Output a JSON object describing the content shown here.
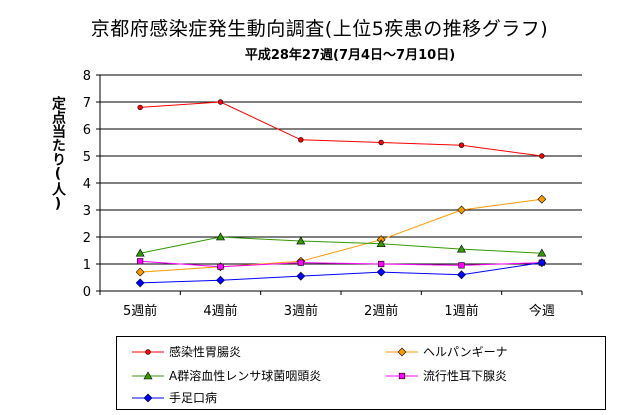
{
  "chart_data": {
    "type": "line",
    "title": "京都府感染症発生動向調査(上位5疾患の推移グラフ)",
    "subtitle": "平成28年27週(7月4日〜7月10日)",
    "ylabel": "定点当たり(人)",
    "xlabel": "",
    "ylim": [
      0,
      8
    ],
    "yticks": [
      "0",
      "1",
      "2",
      "3",
      "4",
      "5",
      "6",
      "7",
      "8"
    ],
    "categories": [
      "5週前",
      "4週前",
      "3週前",
      "2週前",
      "1週前",
      "今週"
    ],
    "grid": true,
    "legend_position": "bottom",
    "series": [
      {
        "name": "感染性胃腸炎",
        "color": "#ff0000",
        "marker": "circle",
        "values": [
          6.8,
          7.0,
          5.6,
          5.5,
          5.4,
          5.0
        ]
      },
      {
        "name": "ヘルパンギーナ",
        "color": "#ff9900",
        "marker": "diamond",
        "values": [
          0.7,
          0.9,
          1.1,
          1.9,
          3.0,
          3.4
        ]
      },
      {
        "name": "A群溶血性レンサ球菌咽頭炎",
        "color": "#339900",
        "marker": "triangle",
        "values": [
          1.4,
          2.0,
          1.85,
          1.75,
          1.55,
          1.4
        ]
      },
      {
        "name": "流行性耳下腺炎",
        "color": "#ff00ff",
        "marker": "square",
        "values": [
          1.1,
          0.9,
          1.05,
          1.0,
          0.95,
          1.05
        ]
      },
      {
        "name": "手足口病",
        "color": "#0000ff",
        "marker": "diamond",
        "values": [
          0.3,
          0.4,
          0.55,
          0.7,
          0.6,
          1.05
        ]
      }
    ]
  }
}
